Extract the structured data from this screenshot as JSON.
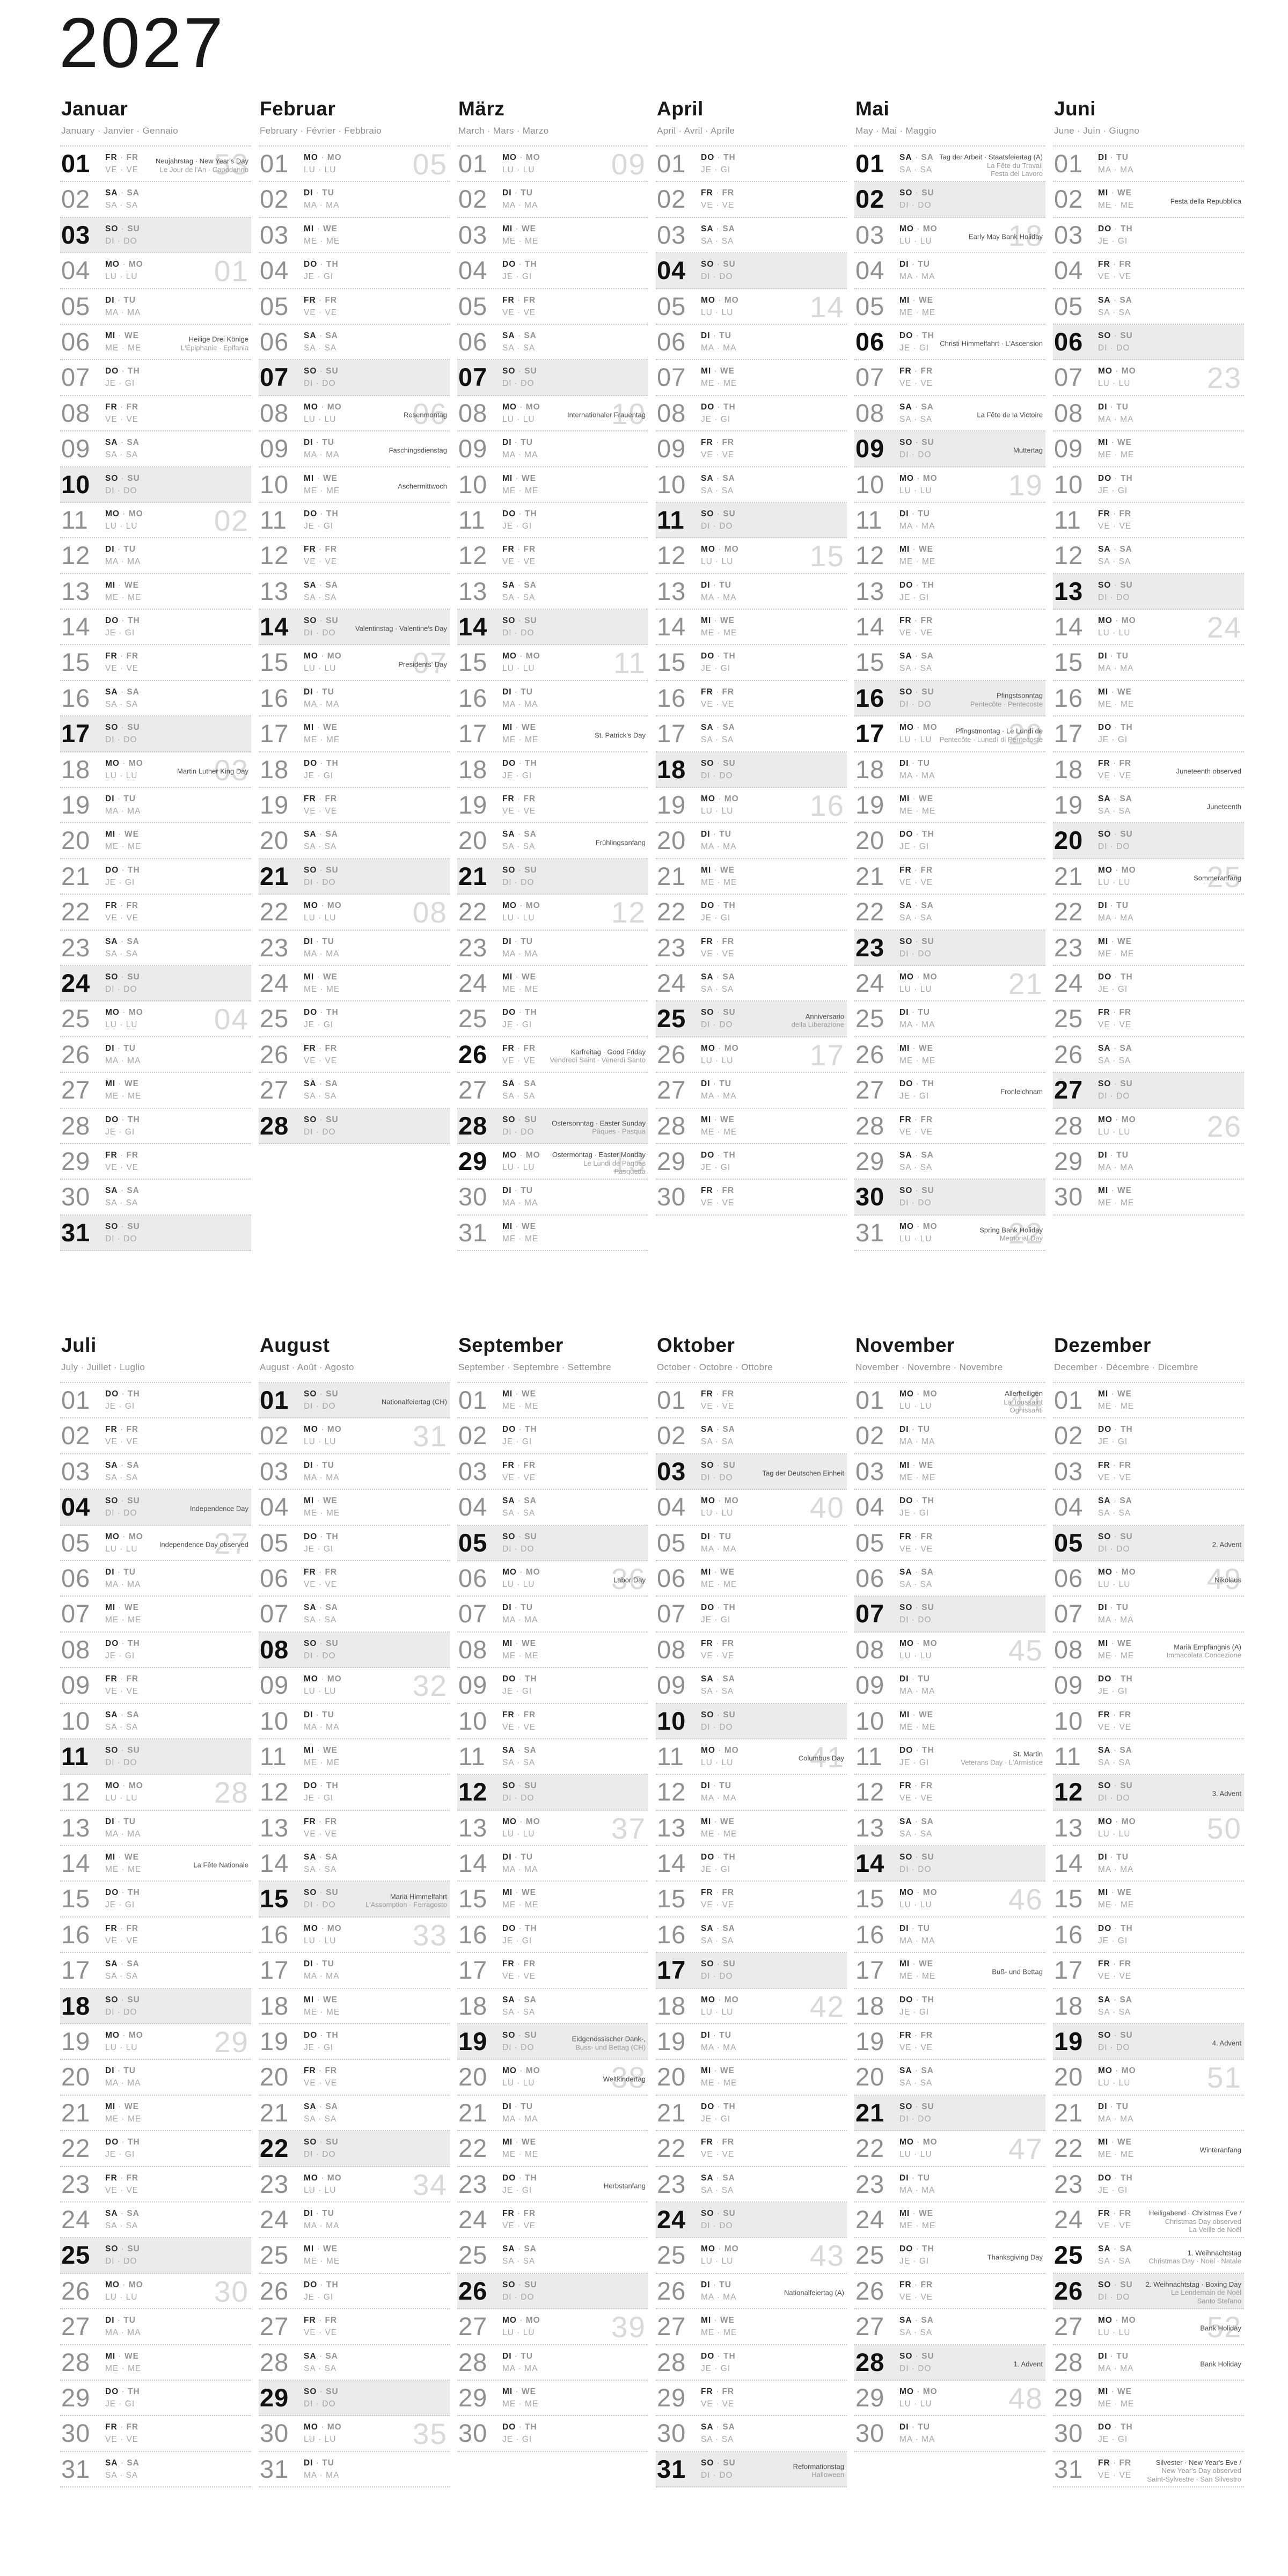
{
  "page": {
    "title": "2027"
  },
  "weekday_separator": " · ",
  "weekday_order": [
    "mo",
    "tu",
    "we",
    "th",
    "fr",
    "sa",
    "su"
  ],
  "weekday_labels": {
    "mo": {
      "de": "MO",
      "en": "MO",
      "frit": "LU · LU"
    },
    "tu": {
      "de": "DI",
      "en": "TU",
      "frit": "MA · MA"
    },
    "we": {
      "de": "MI",
      "en": "WE",
      "frit": "ME · ME"
    },
    "th": {
      "de": "DO",
      "en": "TH",
      "frit": "JE · GI"
    },
    "fr": {
      "de": "FR",
      "en": "FR",
      "frit": "VE · VE"
    },
    "sa": {
      "de": "SA",
      "en": "SA",
      "frit": "SA · SA"
    },
    "su": {
      "de": "SO",
      "en": "SU",
      "frit": "DI · DO"
    }
  },
  "months": [
    {
      "name": "Januar",
      "subtitle": "January · Janvier · Gennaio",
      "start": 4,
      "days": 31,
      "weeks": {
        "1": "53",
        "4": "01",
        "11": "02",
        "18": "03",
        "25": "04"
      },
      "holidays": {
        "1": {
          "lines": [
            "Neujahrstag · New Year's Day",
            "Le Jour de l'An · Capodanno"
          ],
          "bold": true
        },
        "6": {
          "lines": [
            "Heilige Drei Könige",
            "L'Épiphanie · Epifania"
          ]
        },
        "18": {
          "lines": [
            "Martin Luther King Day"
          ]
        }
      }
    },
    {
      "name": "Februar",
      "subtitle": "February · Février · Febbraio",
      "start": 0,
      "days": 28,
      "weeks": {
        "1": "05",
        "8": "06",
        "15": "07",
        "22": "08"
      },
      "holidays": {
        "8": {
          "lines": [
            "Rosenmontag"
          ]
        },
        "9": {
          "lines": [
            "Faschingsdienstag"
          ]
        },
        "10": {
          "lines": [
            "Aschermittwoch"
          ]
        },
        "14": {
          "lines": [
            "Valentinstag · Valentine's Day"
          ]
        },
        "15": {
          "lines": [
            "Presidents' Day"
          ]
        }
      }
    },
    {
      "name": "März",
      "subtitle": "March · Mars · Marzo",
      "start": 0,
      "days": 31,
      "weeks": {
        "1": "09",
        "8": "10",
        "15": "11",
        "22": "12",
        "29": "13"
      },
      "holidays": {
        "8": {
          "lines": [
            "Internationaler Frauentag"
          ]
        },
        "17": {
          "lines": [
            "St. Patrick's Day"
          ]
        },
        "20": {
          "lines": [
            "Frühlingsanfang"
          ]
        },
        "26": {
          "lines": [
            "Karfreitag · Good Friday",
            "Vendredi Saint · Venerdì Santo"
          ],
          "bold": true
        },
        "28": {
          "lines": [
            "Ostersonntag · Easter Sunday",
            "Pâques · Pasqua"
          ]
        },
        "29": {
          "lines": [
            "Ostermontag · Easter Monday",
            "Le Lundi de Pâques",
            "Pasquetta"
          ],
          "bold": true
        }
      }
    },
    {
      "name": "April",
      "subtitle": "April · Avril · Aprile",
      "start": 3,
      "days": 30,
      "weeks": {
        "5": "14",
        "12": "15",
        "19": "16",
        "26": "17"
      },
      "holidays": {
        "25": {
          "lines": [
            "Anniversario",
            "della Liberazione"
          ]
        }
      }
    },
    {
      "name": "Mai",
      "subtitle": "May · Mai · Maggio",
      "start": 5,
      "days": 31,
      "weeks": {
        "3": "18",
        "10": "19",
        "17": "20",
        "24": "21",
        "31": "22"
      },
      "holidays": {
        "1": {
          "lines": [
            "Tag der Arbeit · Staatsfeiertag (A)",
            "La Fête du Travail",
            "Festa del Lavoro"
          ],
          "bold": true
        },
        "3": {
          "lines": [
            "Early May Bank Holiday"
          ]
        },
        "6": {
          "lines": [
            "Christi Himmelfahrt · L'Ascension"
          ],
          "bold": true
        },
        "8": {
          "lines": [
            "La Fête de la Victoire"
          ]
        },
        "9": {
          "lines": [
            "Muttertag"
          ]
        },
        "16": {
          "lines": [
            "Pfingstsonntag",
            "Pentecôte · Pentecoste"
          ]
        },
        "17": {
          "lines": [
            "Pfingstmontag · Le Lundi de",
            "Pentecôte · Lunedì di Pentecoste"
          ],
          "bold": true
        },
        "27": {
          "lines": [
            "Fronleichnam"
          ]
        },
        "31": {
          "lines": [
            "Spring Bank Holiday",
            "Memorial Day"
          ]
        }
      }
    },
    {
      "name": "Juni",
      "subtitle": "June · Juin · Giugno",
      "start": 1,
      "days": 30,
      "weeks": {
        "7": "23",
        "14": "24",
        "21": "25",
        "28": "26"
      },
      "holidays": {
        "2": {
          "lines": [
            "Festa della Repubblica"
          ]
        },
        "18": {
          "lines": [
            "Juneteenth observed"
          ]
        },
        "19": {
          "lines": [
            "Juneteenth"
          ]
        },
        "21": {
          "lines": [
            "Sommeranfang"
          ]
        }
      }
    },
    {
      "name": "Juli",
      "subtitle": "July · Juillet · Luglio",
      "start": 3,
      "days": 31,
      "weeks": {
        "5": "27",
        "12": "28",
        "19": "29",
        "26": "30"
      },
      "holidays": {
        "4": {
          "lines": [
            "Independence Day"
          ]
        },
        "5": {
          "lines": [
            "Independence Day observed"
          ]
        },
        "14": {
          "lines": [
            "La Fête Nationale"
          ]
        }
      }
    },
    {
      "name": "August",
      "subtitle": "August · Août · Agosto",
      "start": 6,
      "days": 31,
      "weeks": {
        "2": "31",
        "9": "32",
        "16": "33",
        "23": "34",
        "30": "35"
      },
      "holidays": {
        "1": {
          "lines": [
            "Nationalfeiertag (CH)"
          ]
        },
        "15": {
          "lines": [
            "Mariä Himmelfahrt",
            "L'Assomption · Ferragosto"
          ]
        }
      }
    },
    {
      "name": "September",
      "subtitle": "September · Septembre · Settembre",
      "start": 2,
      "days": 30,
      "weeks": {
        "6": "36",
        "13": "37",
        "20": "38",
        "27": "39"
      },
      "holidays": {
        "6": {
          "lines": [
            "Labor Day"
          ]
        },
        "19": {
          "lines": [
            "Eidgenössischer Dank-,",
            "Buss- und Bettag (CH)"
          ]
        },
        "20": {
          "lines": [
            "Weltkindertag"
          ]
        },
        "23": {
          "lines": [
            "Herbstanfang"
          ]
        }
      }
    },
    {
      "name": "Oktober",
      "subtitle": "October · Octobre · Ottobre",
      "start": 4,
      "days": 31,
      "weeks": {
        "4": "40",
        "11": "41",
        "18": "42",
        "25": "43"
      },
      "holidays": {
        "3": {
          "lines": [
            "Tag der Deutschen Einheit"
          ]
        },
        "11": {
          "lines": [
            "Columbus Day"
          ]
        },
        "26": {
          "lines": [
            "Nationalfeiertag (A)"
          ]
        },
        "31": {
          "lines": [
            "Reformationstag",
            "Halloween"
          ]
        }
      }
    },
    {
      "name": "November",
      "subtitle": "November · Novembre · Novembre",
      "start": 0,
      "days": 30,
      "weeks": {
        "1": "44",
        "8": "45",
        "15": "46",
        "22": "47",
        "29": "48"
      },
      "holidays": {
        "1": {
          "lines": [
            "Allerheiligen",
            "La Toussaint",
            "Ognissanti"
          ]
        },
        "11": {
          "lines": [
            "St. Martin",
            "Veterans Day · L'Armistice"
          ]
        },
        "17": {
          "lines": [
            "Buß- und Bettag"
          ]
        },
        "25": {
          "lines": [
            "Thanksgiving Day"
          ]
        },
        "28": {
          "lines": [
            "1. Advent"
          ]
        }
      }
    },
    {
      "name": "Dezember",
      "subtitle": "December · Décembre · Dicembre",
      "start": 2,
      "days": 31,
      "weeks": {
        "6": "49",
        "13": "50",
        "20": "51",
        "27": "52"
      },
      "holidays": {
        "5": {
          "lines": [
            "2. Advent"
          ]
        },
        "6": {
          "lines": [
            "Nikolaus"
          ]
        },
        "8": {
          "lines": [
            "Mariä Empfängnis (A)",
            "Immacolata Concezione"
          ]
        },
        "12": {
          "lines": [
            "3. Advent"
          ]
        },
        "19": {
          "lines": [
            "4. Advent"
          ]
        },
        "22": {
          "lines": [
            "Winteranfang"
          ]
        },
        "24": {
          "lines": [
            "Heiligabend · Christmas Eve /",
            "Christmas Day observed",
            "La Veille de Noël"
          ]
        },
        "25": {
          "lines": [
            "1. Weihnachtstag",
            "Christmas Day · Noël · Natale"
          ],
          "bold": true
        },
        "26": {
          "lines": [
            "2. Weihnachtstag · Boxing Day",
            "Le Lendemain de Noël",
            "Santo Stefano"
          ]
        },
        "27": {
          "lines": [
            "Bank Holiday"
          ]
        },
        "28": {
          "lines": [
            "Bank Holiday"
          ]
        },
        "31": {
          "lines": [
            "Silvester · New Year's Eve /",
            "New Year's Day observed",
            "Saint-Sylvestre · San Silvestro"
          ]
        }
      }
    }
  ]
}
